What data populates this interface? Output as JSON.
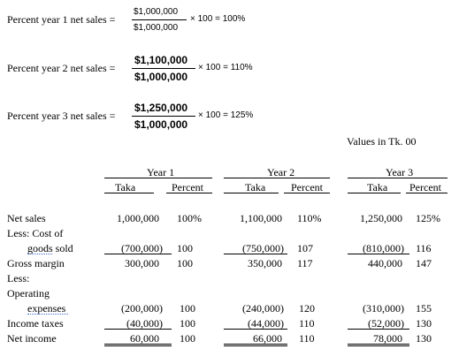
{
  "formulas": [
    {
      "label": "Percent year 1 net sales =",
      "numerator": "$1,000,000",
      "denominator": "$1,000,000",
      "result": "× 100 = 100%"
    },
    {
      "label": "Percent year 2 net sales =",
      "numerator": "$1,100,000",
      "denominator": "$1,000,000",
      "result": "× 100 = 110%"
    },
    {
      "label": "Percent year 3 net sales =",
      "numerator": "$1,250,000",
      "denominator": "$1,000,000",
      "result": "× 100 = 125%"
    }
  ],
  "note": "Values in Tk. 00",
  "table": {
    "years": [
      "Year 1",
      "Year 2",
      "Year 3"
    ],
    "subheaders": [
      "Taka",
      "Percent"
    ],
    "rows": {
      "net_sales": {
        "label": "Net sales",
        "values": [
          "1,000,000",
          "100%",
          "1,100,000",
          "110%",
          "1,250,000",
          "125%"
        ]
      },
      "less_cost": {
        "label": "Less: Cost of"
      },
      "goods_sold": {
        "label_prefix": "goods",
        "label_suffix": " sold",
        "values": [
          "(700,000)",
          "100",
          "(750,000)",
          "107",
          "(810,000)",
          "116"
        ]
      },
      "gross_margin": {
        "label": "Gross margin",
        "values": [
          "300,000",
          "100",
          "350,000",
          "117",
          "440,000",
          "147"
        ]
      },
      "less": {
        "label": "Less:"
      },
      "operating": {
        "label": "Operating"
      },
      "expenses": {
        "label": "expenses",
        "values": [
          "(200,000)",
          "100",
          "(240,000)",
          "120",
          "(310,000)",
          "155"
        ]
      },
      "income_taxes": {
        "label": "Income taxes",
        "values": [
          "(40,000)",
          "100",
          "(44,000)",
          "110",
          "(52,000)",
          "130"
        ]
      },
      "net_income": {
        "label": "Net income",
        "values": [
          "60,000",
          "100",
          "66,000",
          "110",
          "78,000",
          "130"
        ]
      }
    }
  }
}
